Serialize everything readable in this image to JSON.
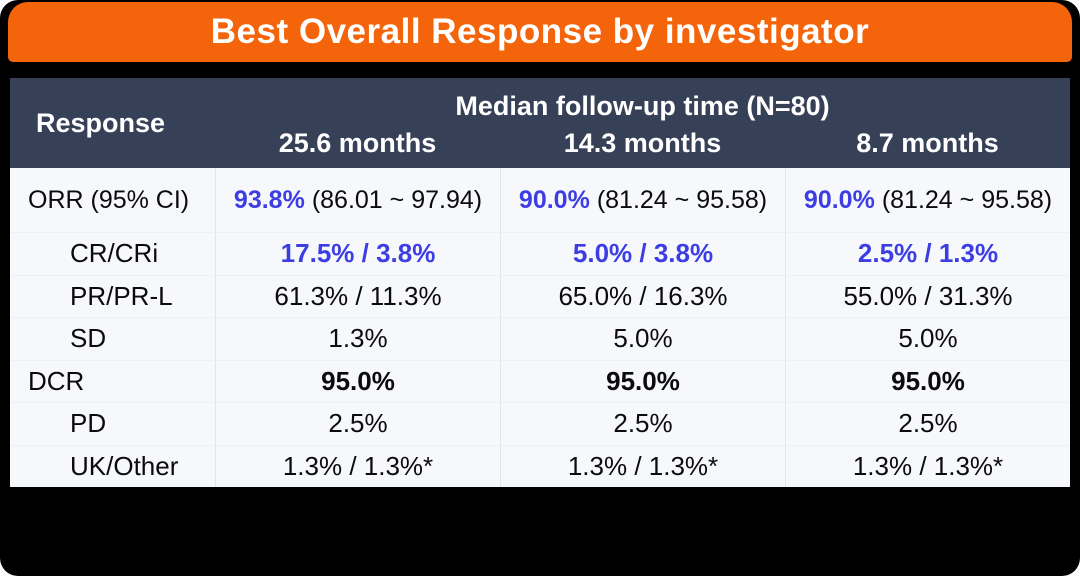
{
  "banner": {
    "title": "Best Overall Response by investigator"
  },
  "chart_data": {
    "type": "table",
    "title": "Best Overall Response by investigator",
    "row_header": "Response",
    "group_header": "Median follow-up time (N=80)",
    "columns": [
      "25.6 months",
      "14.3 months",
      "8.7 months"
    ],
    "rows": [
      {
        "label": "ORR (95% CI)",
        "cells": [
          {
            "pct": "93.8%",
            "ci": "(86.01 ~ 97.94)"
          },
          {
            "pct": "90.0%",
            "ci": "(81.24 ~ 95.58)"
          },
          {
            "pct": "90.0%",
            "ci": "(81.24 ~ 95.58)"
          }
        ]
      },
      {
        "label": "CR/CRi",
        "cells": [
          "17.5% / 3.8%",
          "5.0% / 3.8%",
          "2.5% / 1.3%"
        ]
      },
      {
        "label": "PR/PR-L",
        "cells": [
          "61.3% / 11.3%",
          "65.0% / 16.3%",
          "55.0% / 31.3%"
        ]
      },
      {
        "label": "SD",
        "cells": [
          "1.3%",
          "5.0%",
          "5.0%"
        ]
      },
      {
        "label": "DCR",
        "cells": [
          "95.0%",
          "95.0%",
          "95.0%"
        ]
      },
      {
        "label": "PD",
        "cells": [
          "2.5%",
          "2.5%",
          "2.5%"
        ]
      },
      {
        "label": "UK/Other",
        "cells": [
          "1.3% / 1.3%*",
          "1.3% / 1.3%*",
          "1.3% / 1.3%*"
        ]
      }
    ]
  },
  "colors": {
    "banner_orange": "#F4640A",
    "header_navy": "#364157",
    "highlight_blue": "#3D3DE4",
    "body_background": "#F7F8FB",
    "slide_background": "#000000"
  }
}
